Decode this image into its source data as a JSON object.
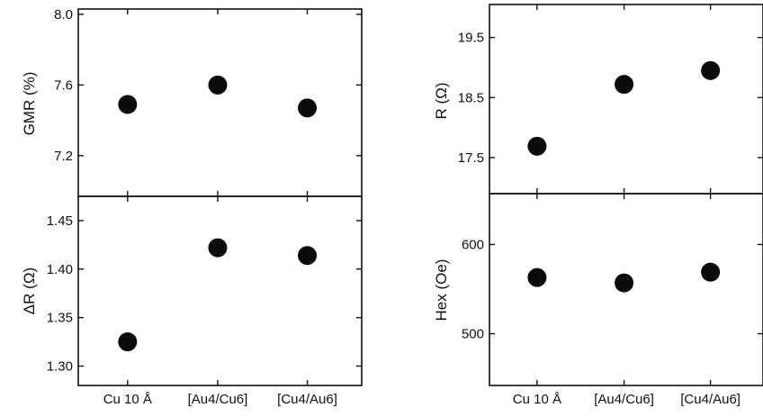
{
  "chart_data": [
    {
      "type": "scatter",
      "panel": "left-top",
      "ylabel": "GMR (%)",
      "categories": [
        "Cu 10 Å",
        "[Au4/Cu6]",
        "[Cu4/Au6]"
      ],
      "values": [
        7.49,
        7.6,
        7.47
      ],
      "ylim": [
        6.97,
        8.03
      ],
      "yticks": [
        "7.2",
        "7.6",
        "8.0"
      ],
      "grid": false
    },
    {
      "type": "scatter",
      "panel": "left-bottom",
      "ylabel": "ΔR (Ω)",
      "categories": [
        "Cu 10 Å",
        "[Au4/Cu6]",
        "[Cu4/Au6]"
      ],
      "values": [
        1.325,
        1.422,
        1.414
      ],
      "ylim": [
        1.28,
        1.475
      ],
      "yticks": [
        "1.30",
        "1.35",
        "1.40",
        "1.45"
      ],
      "grid": false
    },
    {
      "type": "scatter",
      "panel": "right-top",
      "ylabel": "R (Ω)",
      "categories": [
        "Cu 10 Å",
        "[Au4/Cu6]",
        "[Cu4/Au6]"
      ],
      "values": [
        17.69,
        18.72,
        18.95
      ],
      "ylim": [
        16.9,
        20.05
      ],
      "yticks": [
        "17.5",
        "18.5",
        "19.5"
      ],
      "grid": false
    },
    {
      "type": "scatter",
      "panel": "right-bottom",
      "ylabel": "Hex (Oe)",
      "categories": [
        "Cu 10 Å",
        "[Au4/Cu6]",
        "[Cu4/Au6]"
      ],
      "values": [
        563,
        557,
        569
      ],
      "ylim": [
        442,
        657
      ],
      "yticks": [
        "500",
        "600"
      ],
      "grid": false
    }
  ]
}
